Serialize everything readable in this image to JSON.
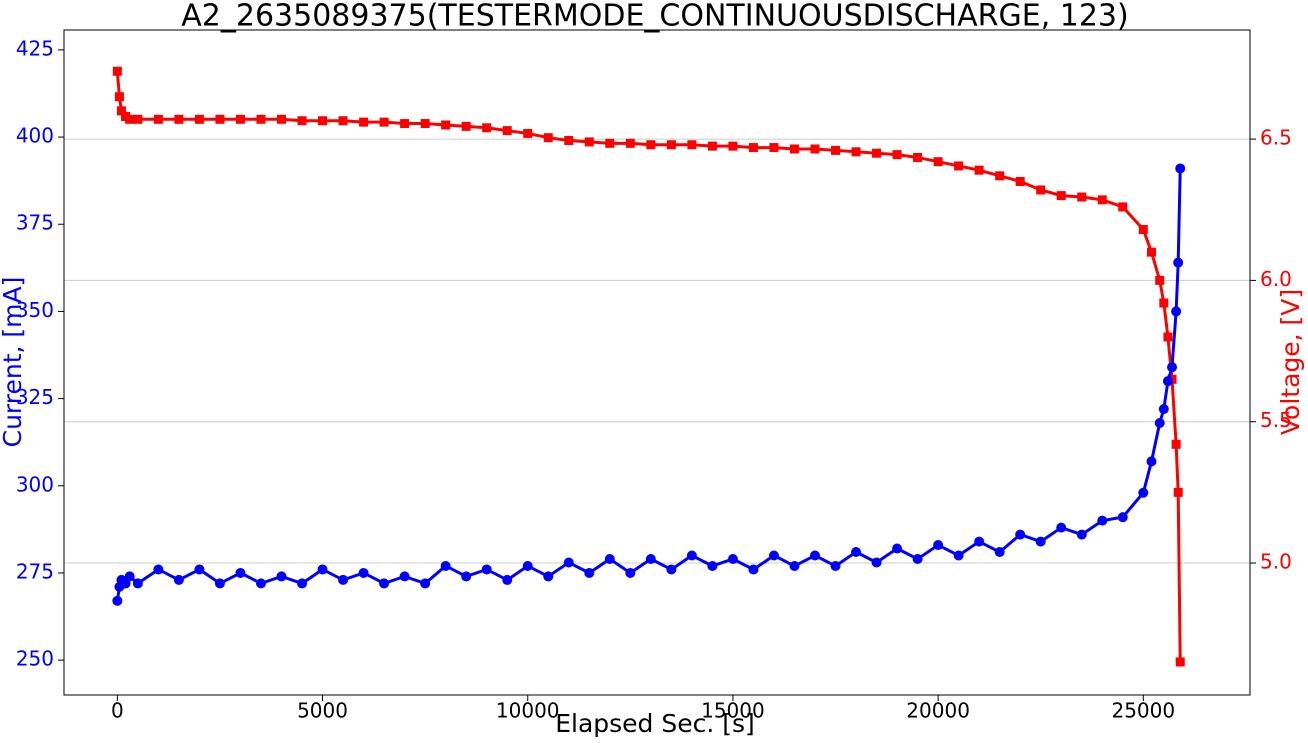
{
  "chart_data": {
    "type": "line",
    "title": "A2_2635089375(TESTERMODE_CONTINUOUSDISCHARGE, 123)",
    "xlabel": "Elapsed Sec. [s]",
    "ylabel": "Current, [mA]",
    "y2label": "Voltage, [V]",
    "x": [
      0,
      50,
      100,
      200,
      300,
      500,
      1000,
      1500,
      2000,
      2500,
      3000,
      3500,
      4000,
      4500,
      5000,
      5500,
      6000,
      6500,
      7000,
      7500,
      8000,
      8500,
      9000,
      9500,
      10000,
      10500,
      11000,
      11500,
      12000,
      12500,
      13000,
      13500,
      14000,
      14500,
      15000,
      15500,
      16000,
      16500,
      17000,
      17500,
      18000,
      18500,
      19000,
      19500,
      20000,
      20500,
      21000,
      21500,
      22000,
      22500,
      23000,
      23500,
      24000,
      24500,
      25000,
      25200,
      25400,
      25500,
      25600,
      25700,
      25800,
      25850,
      25900
    ],
    "series": [
      {
        "name": "Voltage",
        "color": "#ff0000",
        "marker": "square",
        "axis": "y2",
        "values": [
          6.74,
          6.65,
          6.6,
          6.58,
          6.57,
          6.57,
          6.57,
          6.57,
          6.57,
          6.57,
          6.57,
          6.57,
          6.57,
          6.565,
          6.565,
          6.565,
          6.56,
          6.56,
          6.555,
          6.555,
          6.55,
          6.545,
          6.54,
          6.53,
          6.52,
          6.505,
          6.495,
          6.49,
          6.485,
          6.485,
          6.48,
          6.48,
          6.48,
          6.475,
          6.475,
          6.47,
          6.47,
          6.465,
          6.465,
          6.46,
          6.455,
          6.45,
          6.445,
          6.435,
          6.42,
          6.405,
          6.39,
          6.37,
          6.35,
          6.32,
          6.3,
          6.295,
          6.285,
          6.26,
          6.18,
          6.1,
          6.0,
          5.92,
          5.8,
          5.65,
          5.42,
          5.25,
          4.65
        ]
      },
      {
        "name": "Current",
        "color": "#0000ff",
        "marker": "circle",
        "axis": "y",
        "values": [
          267,
          271,
          273,
          272,
          274,
          272,
          276,
          273,
          276,
          272,
          275,
          272,
          274,
          272,
          276,
          273,
          275,
          272,
          274,
          272,
          277,
          274,
          276,
          273,
          277,
          274,
          278,
          275,
          279,
          275,
          279,
          276,
          280,
          277,
          279,
          276,
          280,
          277,
          280,
          277,
          281,
          278,
          282,
          279,
          283,
          280,
          284,
          281,
          286,
          284,
          288,
          286,
          290,
          291,
          298,
          307,
          318,
          322,
          330,
          334,
          350,
          364,
          391
        ]
      }
    ],
    "xlim": [
      -1300,
      27600
    ],
    "xticks": [
      0,
      5000,
      10000,
      15000,
      20000,
      25000
    ],
    "ylim": [
      240,
      430.7
    ],
    "yticks": [
      250,
      275,
      300,
      325,
      350,
      375,
      400,
      425
    ],
    "y2lim": [
      4.533,
      6.886
    ],
    "y2ticks": [
      {
        "value": 5,
        "label": "5.0"
      },
      5.5,
      {
        "value": 6,
        "label": "6.0"
      },
      6.5
    ],
    "grid": true
  }
}
